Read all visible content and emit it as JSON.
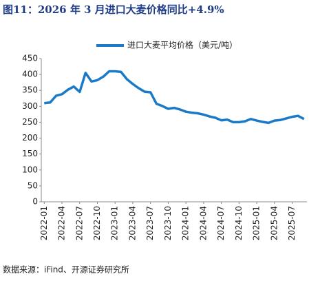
{
  "chart_data": {
    "type": "line",
    "title": "图11：2026 年 3 月进口大麦价格同比+4.9%",
    "source": "数据来源：iFind、开源证券研究所",
    "categories": [
      "2022-01",
      null,
      null,
      "2022-04",
      null,
      null,
      "2022-07",
      null,
      null,
      "2022-10",
      null,
      null,
      "2023-01",
      null,
      null,
      "2023-04",
      null,
      null,
      "2023-07",
      null,
      null,
      "2023-10",
      null,
      null,
      "2024-01",
      null,
      null,
      "2024-04",
      null,
      null,
      "2024-07",
      null,
      null,
      "2024-10",
      null,
      null,
      "2025-01",
      null,
      null,
      "2025-04",
      null,
      null,
      "2025-07",
      null,
      null
    ],
    "series": [
      {
        "name": "进口大麦平均价格（美元/吨）",
        "color": "#1a7ac8",
        "values": [
          310,
          312,
          333,
          338,
          352,
          362,
          345,
          405,
          378,
          382,
          393,
          410,
          410,
          408,
          385,
          370,
          357,
          346,
          344,
          308,
          301,
          292,
          295,
          290,
          283,
          280,
          278,
          274,
          268,
          264,
          256,
          258,
          250,
          250,
          253,
          260,
          255,
          251,
          248,
          255,
          257,
          262,
          267,
          270,
          260
        ]
      }
    ],
    "ylim": [
      0,
      450
    ],
    "yticks": [
      0,
      50,
      100,
      150,
      200,
      250,
      300,
      350,
      400,
      450
    ],
    "grid": false,
    "legend": "top"
  }
}
